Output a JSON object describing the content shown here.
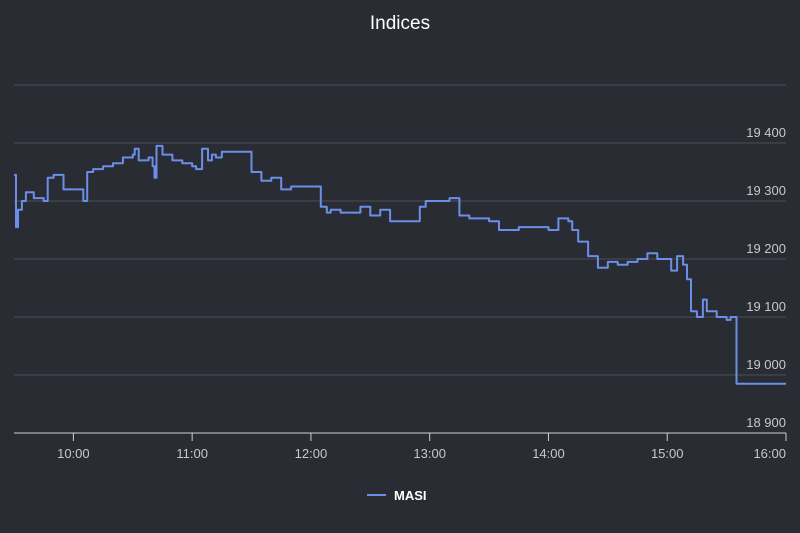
{
  "chart_data": {
    "type": "line",
    "title": "Indices",
    "xlabel": "",
    "ylabel": "",
    "x_ticks": [
      "10:00",
      "11:00",
      "12:00",
      "13:00",
      "14:00",
      "15:00",
      "16:00"
    ],
    "y_ticks": [
      {
        "value": 18900,
        "label": "18 900"
      },
      {
        "value": 19000,
        "label": "19 000"
      },
      {
        "value": 19100,
        "label": "19 100"
      },
      {
        "value": 19200,
        "label": "19 200"
      },
      {
        "value": 19300,
        "label": "19 300"
      },
      {
        "value": 19400,
        "label": "19 400"
      }
    ],
    "xlim": [
      "09:30",
      "16:00"
    ],
    "ylim": [
      18900,
      19500
    ],
    "grid": true,
    "legend_position": "bottom",
    "line_color": "#6b8fe8",
    "series": [
      {
        "name": "MASI",
        "x": [
          "09:30",
          "09:31",
          "09:32",
          "09:34",
          "09:36",
          "09:40",
          "09:45",
          "09:47",
          "09:50",
          "09:55",
          "10:00",
          "10:05",
          "10:07",
          "10:10",
          "10:15",
          "10:20",
          "10:25",
          "10:30",
          "10:31",
          "10:33",
          "10:38",
          "10:40",
          "10:41",
          "10:42",
          "10:45",
          "10:50",
          "10:55",
          "11:00",
          "11:02",
          "11:05",
          "11:08",
          "11:10",
          "11:12",
          "11:15",
          "11:20",
          "11:30",
          "11:35",
          "11:40",
          "11:45",
          "11:50",
          "11:55",
          "12:00",
          "12:05",
          "12:08",
          "12:10",
          "12:15",
          "12:25",
          "12:30",
          "12:35",
          "12:40",
          "12:50",
          "12:55",
          "12:58",
          "13:00",
          "13:05",
          "13:10",
          "13:15",
          "13:20",
          "13:25",
          "13:30",
          "13:35",
          "13:40",
          "13:45",
          "13:50",
          "13:55",
          "14:00",
          "14:05",
          "14:10",
          "14:12",
          "14:15",
          "14:20",
          "14:25",
          "14:30",
          "14:35",
          "14:40",
          "14:45",
          "14:50",
          "14:55",
          "15:00",
          "15:02",
          "15:05",
          "15:08",
          "15:10",
          "15:12",
          "15:15",
          "15:18",
          "15:20",
          "15:25",
          "15:28",
          "15:30",
          "15:32",
          "15:35",
          "15:40",
          "16:00"
        ],
        "values": [
          19345,
          19255,
          19285,
          19300,
          19315,
          19305,
          19300,
          19340,
          19345,
          19320,
          19320,
          19300,
          19350,
          19355,
          19360,
          19365,
          19375,
          19380,
          19390,
          19370,
          19375,
          19360,
          19340,
          19395,
          19380,
          19370,
          19365,
          19360,
          19355,
          19390,
          19370,
          19380,
          19375,
          19385,
          19385,
          19350,
          19335,
          19340,
          19320,
          19325,
          19325,
          19325,
          19290,
          19280,
          19285,
          19280,
          19290,
          19275,
          19285,
          19265,
          19265,
          19290,
          19300,
          19300,
          19300,
          19305,
          19275,
          19270,
          19270,
          19265,
          19250,
          19250,
          19255,
          19255,
          19255,
          19250,
          19270,
          19265,
          19250,
          19230,
          19205,
          19185,
          19195,
          19190,
          19195,
          19200,
          19210,
          19200,
          19200,
          19180,
          19205,
          19190,
          19165,
          19110,
          19100,
          19130,
          19110,
          19100,
          19100,
          19095,
          19100,
          18985,
          18985,
          18985
        ]
      }
    ]
  }
}
